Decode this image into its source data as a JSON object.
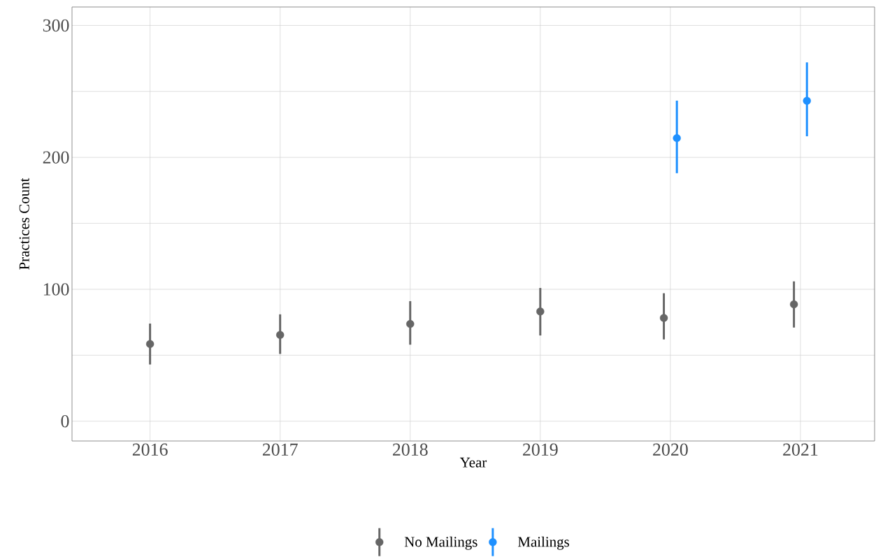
{
  "chart_data": {
    "type": "scatter",
    "xlabel": "Year",
    "ylabel": "Practices Count",
    "categories": [
      "2016",
      "2017",
      "2018",
      "2019",
      "2020",
      "2021"
    ],
    "series": [
      {
        "name": "No Mailings",
        "color": "#666666",
        "values": [
          58.5,
          65.4,
          73.7,
          83.2,
          78.3,
          88.6
        ],
        "errors": [
          [
            43,
            74
          ],
          [
            51,
            81
          ],
          [
            58,
            91
          ],
          [
            65,
            101
          ],
          [
            62,
            97
          ],
          [
            71,
            106
          ]
        ]
      },
      {
        "name": "Mailings",
        "color": "#1e90ff",
        "values": [
          null,
          null,
          null,
          null,
          214.6,
          242.9
        ],
        "errors": [
          null,
          null,
          null,
          null,
          [
            188,
            243
          ],
          [
            216,
            272
          ]
        ]
      }
    ],
    "ylim": [
      -15,
      314
    ],
    "yticks": [
      0,
      {
        "value": 50,
        "label": null
      },
      100,
      {
        "value": 150,
        "label": null
      },
      200,
      {
        "value": 250,
        "label": null
      },
      300
    ],
    "grid": true,
    "legend": "bottom",
    "marker": "circle"
  }
}
